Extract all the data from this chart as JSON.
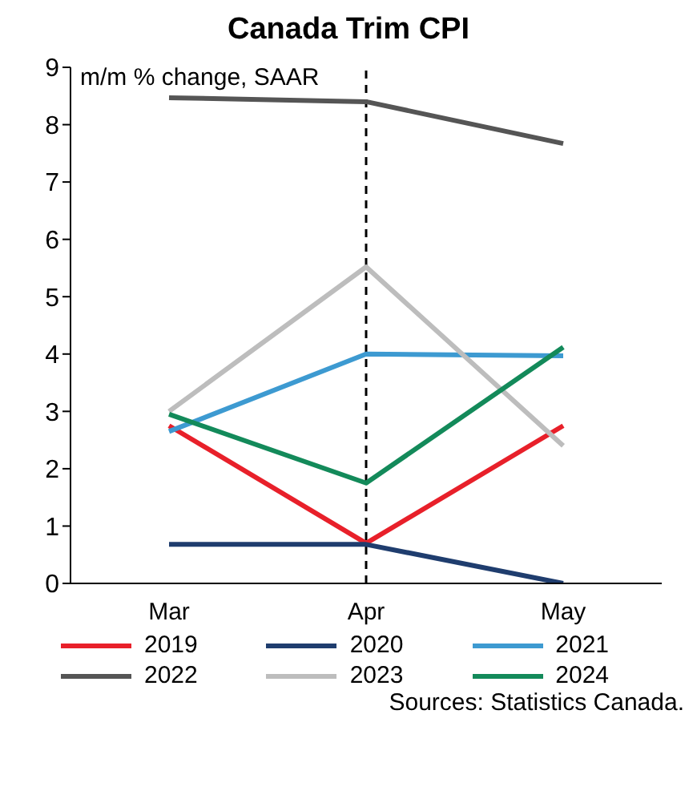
{
  "chart_data": {
    "type": "line",
    "title": "Canada Trim CPI",
    "ylabel": "m/m % change, SAAR",
    "categories": [
      "Mar",
      "Apr",
      "May"
    ],
    "series": [
      {
        "name": "2019",
        "color": "#e8202a",
        "values": [
          2.75,
          0.7,
          2.75
        ]
      },
      {
        "name": "2020",
        "color": "#1f3d6e",
        "values": [
          0.68,
          0.68,
          0
        ]
      },
      {
        "name": "2021",
        "color": "#3d9ad1",
        "values": [
          2.65,
          4.0,
          3.97
        ]
      },
      {
        "name": "2022",
        "color": "#555555",
        "values": [
          8.47,
          8.4,
          7.67
        ]
      },
      {
        "name": "2023",
        "color": "#bdbdbd",
        "values": [
          3.0,
          5.52,
          2.4
        ]
      },
      {
        "name": "2024",
        "color": "#138a5a",
        "values": [
          2.95,
          1.75,
          4.12
        ]
      }
    ],
    "ylim": [
      0,
      9
    ],
    "yticks": [
      0,
      1,
      2,
      3,
      4,
      5,
      6,
      7,
      8,
      9
    ],
    "grid": false,
    "legend": "bottom",
    "ref_lines": [
      {
        "axis": "x",
        "value": "Apr",
        "color": "#000000",
        "line_style": "dashed"
      }
    ],
    "annotations": [
      "Sources: Statistics Canada."
    ]
  }
}
